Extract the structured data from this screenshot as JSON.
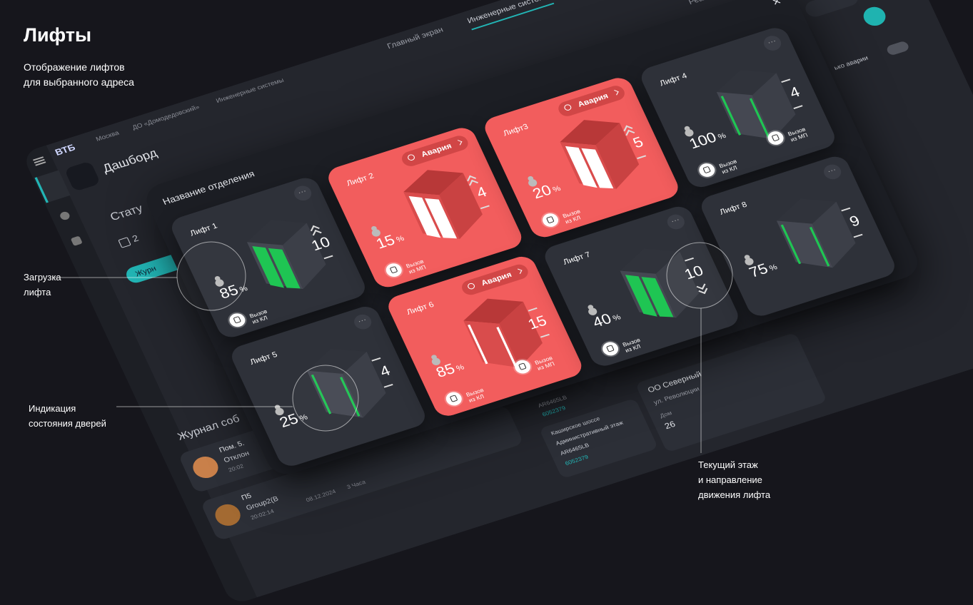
{
  "header": {
    "title": "Лифты",
    "subtitle": [
      "Отображение лифтов",
      "для выбранного адреса"
    ]
  },
  "annotations": {
    "load": [
      "Загрузка",
      "лифта"
    ],
    "doors": [
      "Индикация",
      "состояния дверей"
    ],
    "floor": [
      "Текущий этаж",
      "и направление",
      "движения лифта"
    ]
  },
  "app": {
    "logo": "ВТБ",
    "breadcrumbs": [
      "Москва",
      "ДО «Домодедовский»",
      "Инженерные системы"
    ],
    "tabs": [
      "Главный экран",
      "Инженерные системы"
    ],
    "realtime": "Реальное вр",
    "page_title": "Дашборд",
    "status": "Стату",
    "status_count": 2,
    "journal_button": "Журн",
    "alarm_filter": "ько аварии",
    "journal_title": "Журнал соб",
    "events": [
      {
        "title": "Пом. 5.",
        "text": "Отклон",
        "time": "20:02"
      },
      {
        "title": "П5",
        "text": "Group2(B",
        "time": "20:02:14",
        "date": "08.12.2024",
        "duration": "3 Часа"
      }
    ],
    "objects": [
      {
        "code": "AR6465LB",
        "id": "6052379"
      },
      {
        "address": "Каширское шоссе",
        "floor": "Административный этаж",
        "code": "AR6465LB",
        "id": "6052379"
      },
      {
        "name": "ОО Северный",
        "street": "ул. Революции",
        "house_label": "Дом",
        "house": 26
      }
    ]
  },
  "modal": {
    "title": "Название отделения",
    "unit": "%",
    "lifts": [
      {
        "name": "Лифт 1",
        "load": 85,
        "floor": 10,
        "direction": "up",
        "doors": "closed",
        "calls": [
          "Вызов из КЛ"
        ]
      },
      {
        "name": "Лифт 2",
        "alarm": "Авария",
        "load": 15,
        "floor": 4,
        "direction": "up",
        "doors": "closed",
        "calls": [
          "Вызов из МП"
        ]
      },
      {
        "name": "Лифт3",
        "alarm": "Авария",
        "load": 20,
        "floor": 5,
        "direction": "up",
        "doors": "closed",
        "calls": [
          "Вызов из КЛ"
        ]
      },
      {
        "name": "Лифт 4",
        "load": 100,
        "floor": 4,
        "direction": null,
        "doors": "open",
        "calls": [
          "Вызов из КЛ",
          "Вызов из МП"
        ]
      },
      {
        "name": "Лифт 5",
        "load": 25,
        "floor": 4,
        "direction": null,
        "doors": "open"
      },
      {
        "name": "Лифт 6",
        "alarm": "Авария",
        "load": 85,
        "floor": 15,
        "direction": null,
        "doors": "open",
        "calls": [
          "Вызов из КЛ",
          "Вызов из МП"
        ]
      },
      {
        "name": "Лифт 7",
        "load": 40,
        "floor": 10,
        "direction": "down",
        "doors": "closed",
        "calls": [
          "Вызов из КЛ"
        ]
      },
      {
        "name": "Лифт 8",
        "load": 75,
        "floor": 9,
        "direction": null,
        "doors": "open"
      }
    ]
  }
}
